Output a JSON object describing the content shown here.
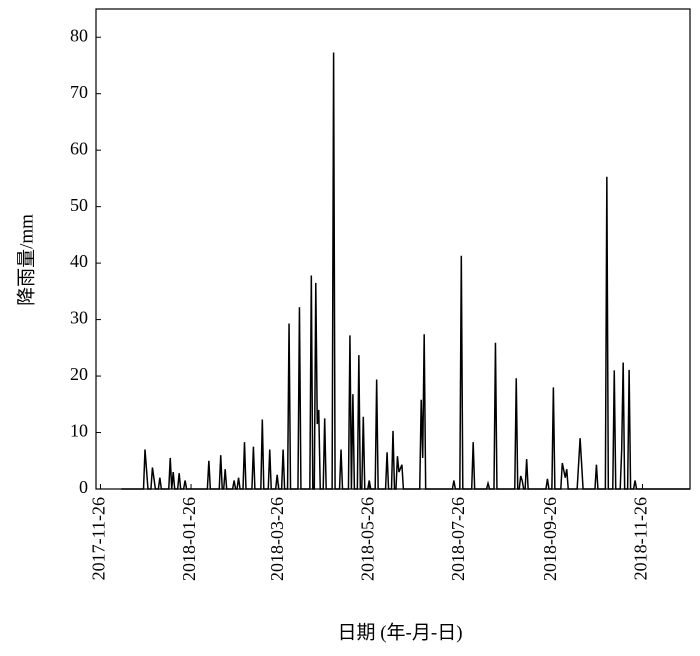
{
  "chart_data": {
    "type": "line",
    "xlabel": "日期 (年-月-日)",
    "ylabel": "降雨量/mm",
    "color": "#000000",
    "xlim": [
      "2017-11-23",
      "2018-12-28"
    ],
    "xticks": [
      "2017-11-26",
      "2018-01-26",
      "2018-03-26",
      "2018-05-26",
      "2018-07-26",
      "2018-09-26",
      "2018-11-26"
    ],
    "ylim": [
      0,
      85
    ],
    "yticks": [
      0,
      10,
      20,
      30,
      40,
      50,
      60,
      70,
      80
    ],
    "x": [
      "2017-12-10",
      "2017-12-25",
      "2017-12-26",
      "2017-12-28",
      "2017-12-30",
      "2017-12-31",
      "2018-01-02",
      "2018-01-04",
      "2018-01-05",
      "2018-01-06",
      "2018-01-11",
      "2018-01-12",
      "2018-01-13",
      "2018-01-14",
      "2018-01-15",
      "2018-01-17",
      "2018-01-18",
      "2018-01-19",
      "2018-01-21",
      "2018-01-22",
      "2018-01-23",
      "2018-02-06",
      "2018-02-07",
      "2018-02-08",
      "2018-02-14",
      "2018-02-15",
      "2018-02-16",
      "2018-02-17",
      "2018-02-18",
      "2018-02-19",
      "2018-02-23",
      "2018-02-24",
      "2018-02-25",
      "2018-02-26",
      "2018-02-27",
      "2018-02-28",
      "2018-03-02",
      "2018-03-03",
      "2018-03-04",
      "2018-03-08",
      "2018-03-09",
      "2018-03-10",
      "2018-03-14",
      "2018-03-15",
      "2018-03-16",
      "2018-03-19",
      "2018-03-20",
      "2018-03-21",
      "2018-03-24",
      "2018-03-25",
      "2018-03-26",
      "2018-03-28",
      "2018-03-29",
      "2018-03-30",
      "2018-04-01",
      "2018-04-02",
      "2018-04-03",
      "2018-04-08",
      "2018-04-09",
      "2018-04-10",
      "2018-04-16",
      "2018-04-17",
      "2018-04-18",
      "2018-04-19",
      "2018-04-20",
      "2018-04-21",
      "2018-04-22",
      "2018-04-23",
      "2018-04-25",
      "2018-04-26",
      "2018-04-27",
      "2018-05-01",
      "2018-05-02",
      "2018-05-03",
      "2018-05-06",
      "2018-05-07",
      "2018-05-08",
      "2018-05-12",
      "2018-05-13",
      "2018-05-14",
      "2018-05-15",
      "2018-05-16",
      "2018-05-18",
      "2018-05-19",
      "2018-05-20",
      "2018-05-21",
      "2018-05-22",
      "2018-05-23",
      "2018-05-25",
      "2018-05-26",
      "2018-05-27",
      "2018-05-30",
      "2018-05-31",
      "2018-06-01",
      "2018-06-06",
      "2018-06-07",
      "2018-06-08",
      "2018-06-10",
      "2018-06-11",
      "2018-06-12",
      "2018-06-13",
      "2018-06-14",
      "2018-06-15",
      "2018-06-17",
      "2018-06-18",
      "2018-06-29",
      "2018-06-30",
      "2018-07-01",
      "2018-07-02",
      "2018-07-03",
      "2018-07-21",
      "2018-07-22",
      "2018-07-23",
      "2018-07-26",
      "2018-07-27",
      "2018-07-28",
      "2018-08-03",
      "2018-08-04",
      "2018-08-05",
      "2018-08-13",
      "2018-08-14",
      "2018-08-15",
      "2018-08-18",
      "2018-08-19",
      "2018-08-20",
      "2018-09-01",
      "2018-09-02",
      "2018-09-03",
      "2018-09-04",
      "2018-09-05",
      "2018-09-06",
      "2018-09-07",
      "2018-09-08",
      "2018-09-09",
      "2018-09-10",
      "2018-09-22",
      "2018-09-23",
      "2018-09-24",
      "2018-09-26",
      "2018-09-27",
      "2018-09-28",
      "2018-10-02",
      "2018-10-03",
      "2018-10-05",
      "2018-10-06",
      "2018-10-07",
      "2018-10-13",
      "2018-10-15",
      "2018-10-17",
      "2018-10-25",
      "2018-10-26",
      "2018-10-27",
      "2018-11-01",
      "2018-11-02",
      "2018-11-03",
      "2018-11-06",
      "2018-11-07",
      "2018-11-08",
      "2018-11-11",
      "2018-11-12",
      "2018-11-13",
      "2018-11-14",
      "2018-11-16",
      "2018-11-17",
      "2018-11-18",
      "2018-11-20",
      "2018-11-21",
      "2018-11-22",
      "2018-12-28"
    ],
    "values": [
      0,
      0,
      7,
      0,
      0,
      3.8,
      0,
      0,
      2,
      0,
      0,
      5.5,
      0,
      3,
      0,
      0,
      2.8,
      0,
      0,
      1.5,
      0,
      0,
      5,
      0,
      0,
      6,
      0,
      0,
      3.5,
      0,
      0,
      1.5,
      0,
      0,
      2,
      0,
      0,
      8.3,
      0,
      0,
      7.5,
      0,
      0,
      12.3,
      0,
      0,
      7,
      0,
      0,
      2.5,
      0,
      0,
      7,
      0,
      0,
      29.3,
      0,
      0,
      32.2,
      0,
      0,
      37.8,
      0,
      0,
      36.5,
      11.5,
      14,
      0,
      0,
      12.5,
      0,
      0,
      77.3,
      0,
      0,
      7,
      0,
      0,
      27.2,
      0,
      16.8,
      0,
      0,
      23.7,
      0,
      0,
      12.8,
      0,
      0,
      1.5,
      0,
      0,
      19.4,
      0,
      0,
      6.5,
      0,
      0,
      10.3,
      0,
      0,
      5.8,
      3,
      4.3,
      0,
      0,
      15.8,
      5.5,
      27.4,
      0,
      0,
      1.5,
      0,
      0,
      41.3,
      0,
      0,
      8.3,
      0,
      0,
      1,
      0,
      0,
      25.9,
      0,
      0,
      19.6,
      0,
      0,
      2.3,
      1.5,
      0,
      0,
      5.3,
      0,
      0,
      1.8,
      0,
      0,
      18,
      0,
      0,
      4.6,
      2,
      3.5,
      0,
      0,
      9,
      0,
      0,
      4.3,
      0,
      0,
      55.3,
      0,
      0,
      21,
      0,
      0,
      7,
      22.4,
      0,
      0,
      21.1,
      0,
      0,
      1.5,
      0,
      0
    ]
  }
}
